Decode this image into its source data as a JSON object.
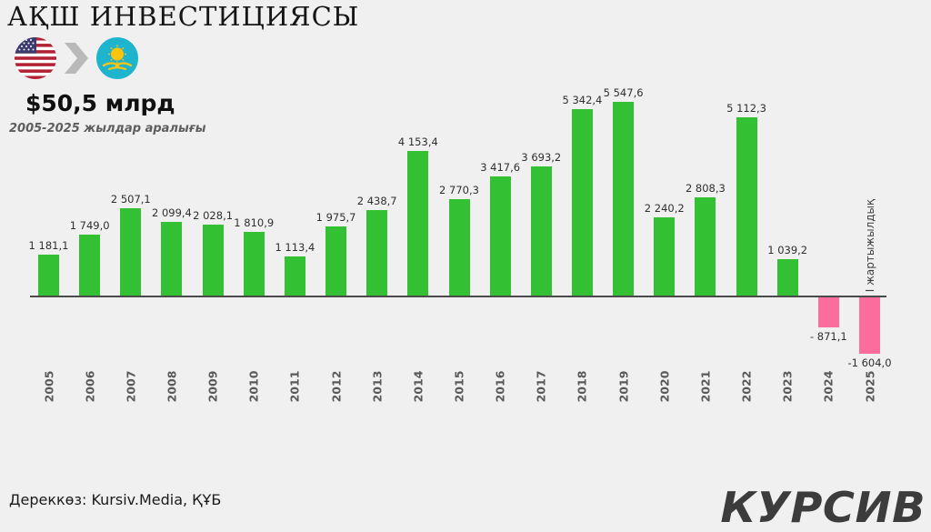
{
  "header": {
    "title": "АҚШ ИНВЕСТИЦИЯСЫ",
    "total": "$50,5 млрд",
    "subtitle": "2005-2025 жылдар аралығы",
    "flow": {
      "from": "united-states",
      "to": "kazakhstan"
    }
  },
  "chart_data": {
    "type": "bar",
    "title": "АҚШ ИНВЕСТИЦИЯСЫ ($50,5 млрд, 2005-2025 жылдар аралығы)",
    "categories": [
      "2005",
      "2006",
      "2007",
      "2008",
      "2009",
      "2010",
      "2011",
      "2012",
      "2013",
      "2014",
      "2015",
      "2016",
      "2017",
      "2018",
      "2019",
      "2020",
      "2021",
      "2022",
      "2023",
      "2024",
      "2025"
    ],
    "values": [
      1181.1,
      1749.0,
      2507.1,
      2099.4,
      2028.1,
      1810.9,
      1113.4,
      1975.7,
      2438.7,
      4153.4,
      2770.3,
      3417.6,
      3693.2,
      5342.4,
      5547.6,
      2240.2,
      2808.3,
      5112.3,
      1039.2,
      -871.1,
      -1604.0
    ],
    "value_labels": [
      "1 181,1",
      "1 749,0",
      "2 507,1",
      "2 099,4",
      "2 028,1",
      "1 810,9",
      "1 113,4",
      "1 975,7",
      "2 438,7",
      "4 153,4",
      "2 770,3",
      "3 417,6",
      "3 693,2",
      "5 342,4",
      "5 547,6",
      "2 240,2",
      "2 808,3",
      "5 112,3",
      "1 039,2",
      "- 871,1",
      "-1 604,0"
    ],
    "annotation": "І жартыжылдық",
    "annotation_category": "2025",
    "xlabel": "",
    "ylabel": "",
    "ylim": [
      -1604.0,
      5547.6
    ],
    "grid": false,
    "legend": false,
    "positive_color": "#33c133",
    "negative_color": "#fb6d9d",
    "axis_color": "#4a4a4a",
    "background_color": "#f0f0f0"
  },
  "footer": {
    "source": "Дереккөз: Kursiv.Media, ҚҰБ",
    "logo": "КУРСИВ"
  }
}
